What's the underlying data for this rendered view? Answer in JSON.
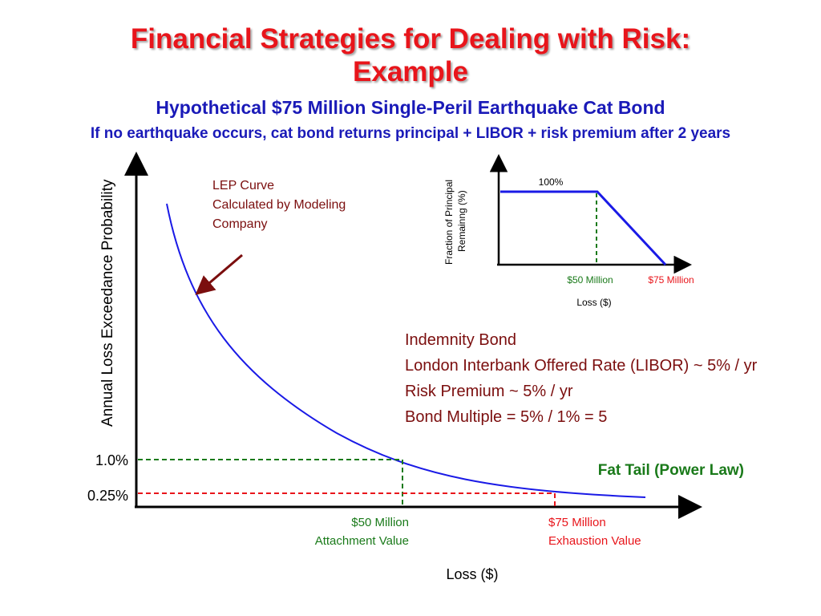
{
  "slide": {
    "title_line1": "Financial Strategies for Dealing with Risk:",
    "title_line2": "Example",
    "subtitle": "Hypothetical $75 Million Single-Peril Earthquake Cat Bond",
    "description": "If no earthquake occurs, cat bond returns principal + LIBOR + risk premium after 2 years"
  },
  "annotations": {
    "lep_curve": [
      "LEP Curve",
      "Calculated by Modeling",
      "Company"
    ],
    "bond_terms": [
      "Indemnity Bond",
      "London Interbank Offered Rate (LIBOR) ~ 5% / yr",
      "Risk Premium ~ 5% / yr",
      "Bond Multiple = 5% / 1% = 5"
    ],
    "fat_tail": "Fat Tail (Power Law)"
  },
  "main_chart": {
    "ylabel": "Annual Loss Exceedance Probability",
    "xlabel": "Loss ($)",
    "y_tick_labels": [
      "1.0%",
      "0.25%"
    ],
    "attachment_label": [
      "$50 Million",
      "Attachment Value"
    ],
    "exhaustion_label": [
      "$75 Million",
      "Exhaustion Value"
    ]
  },
  "inset_chart": {
    "ylabel_lines": [
      "Fraction of Principal",
      "Remainng  (%)"
    ],
    "xlabel": "Loss ($)",
    "top_label": "100%",
    "x_labels": [
      "$50 Million",
      "$75 Million"
    ]
  },
  "chart_data": [
    {
      "type": "line",
      "ylabel": "Annual Loss Exceedance Probability",
      "xlabel": "Loss ($)",
      "points": [
        {
          "loss": "$50 Million",
          "probability_pct": 1.0,
          "role": "Attachment Value"
        },
        {
          "loss": "$75 Million",
          "probability_pct": 0.25,
          "role": "Exhaustion Value"
        }
      ]
    },
    {
      "type": "line",
      "ylabel": "Fraction of Principal Remainng (%)",
      "xlabel": "Loss ($)",
      "points": [
        {
          "loss_million": 0,
          "remaining_pct": 100
        },
        {
          "loss_million": 50,
          "remaining_pct": 100
        },
        {
          "loss_million": 75,
          "remaining_pct": 0
        }
      ]
    }
  ],
  "colors": {
    "title": "#e8151b",
    "subtitle": "#1a1ab8",
    "curve": "#1a1ae6",
    "attachment": "#1a7a1a",
    "exhaustion": "#e8151b",
    "annotation": "#7b0e0e"
  }
}
